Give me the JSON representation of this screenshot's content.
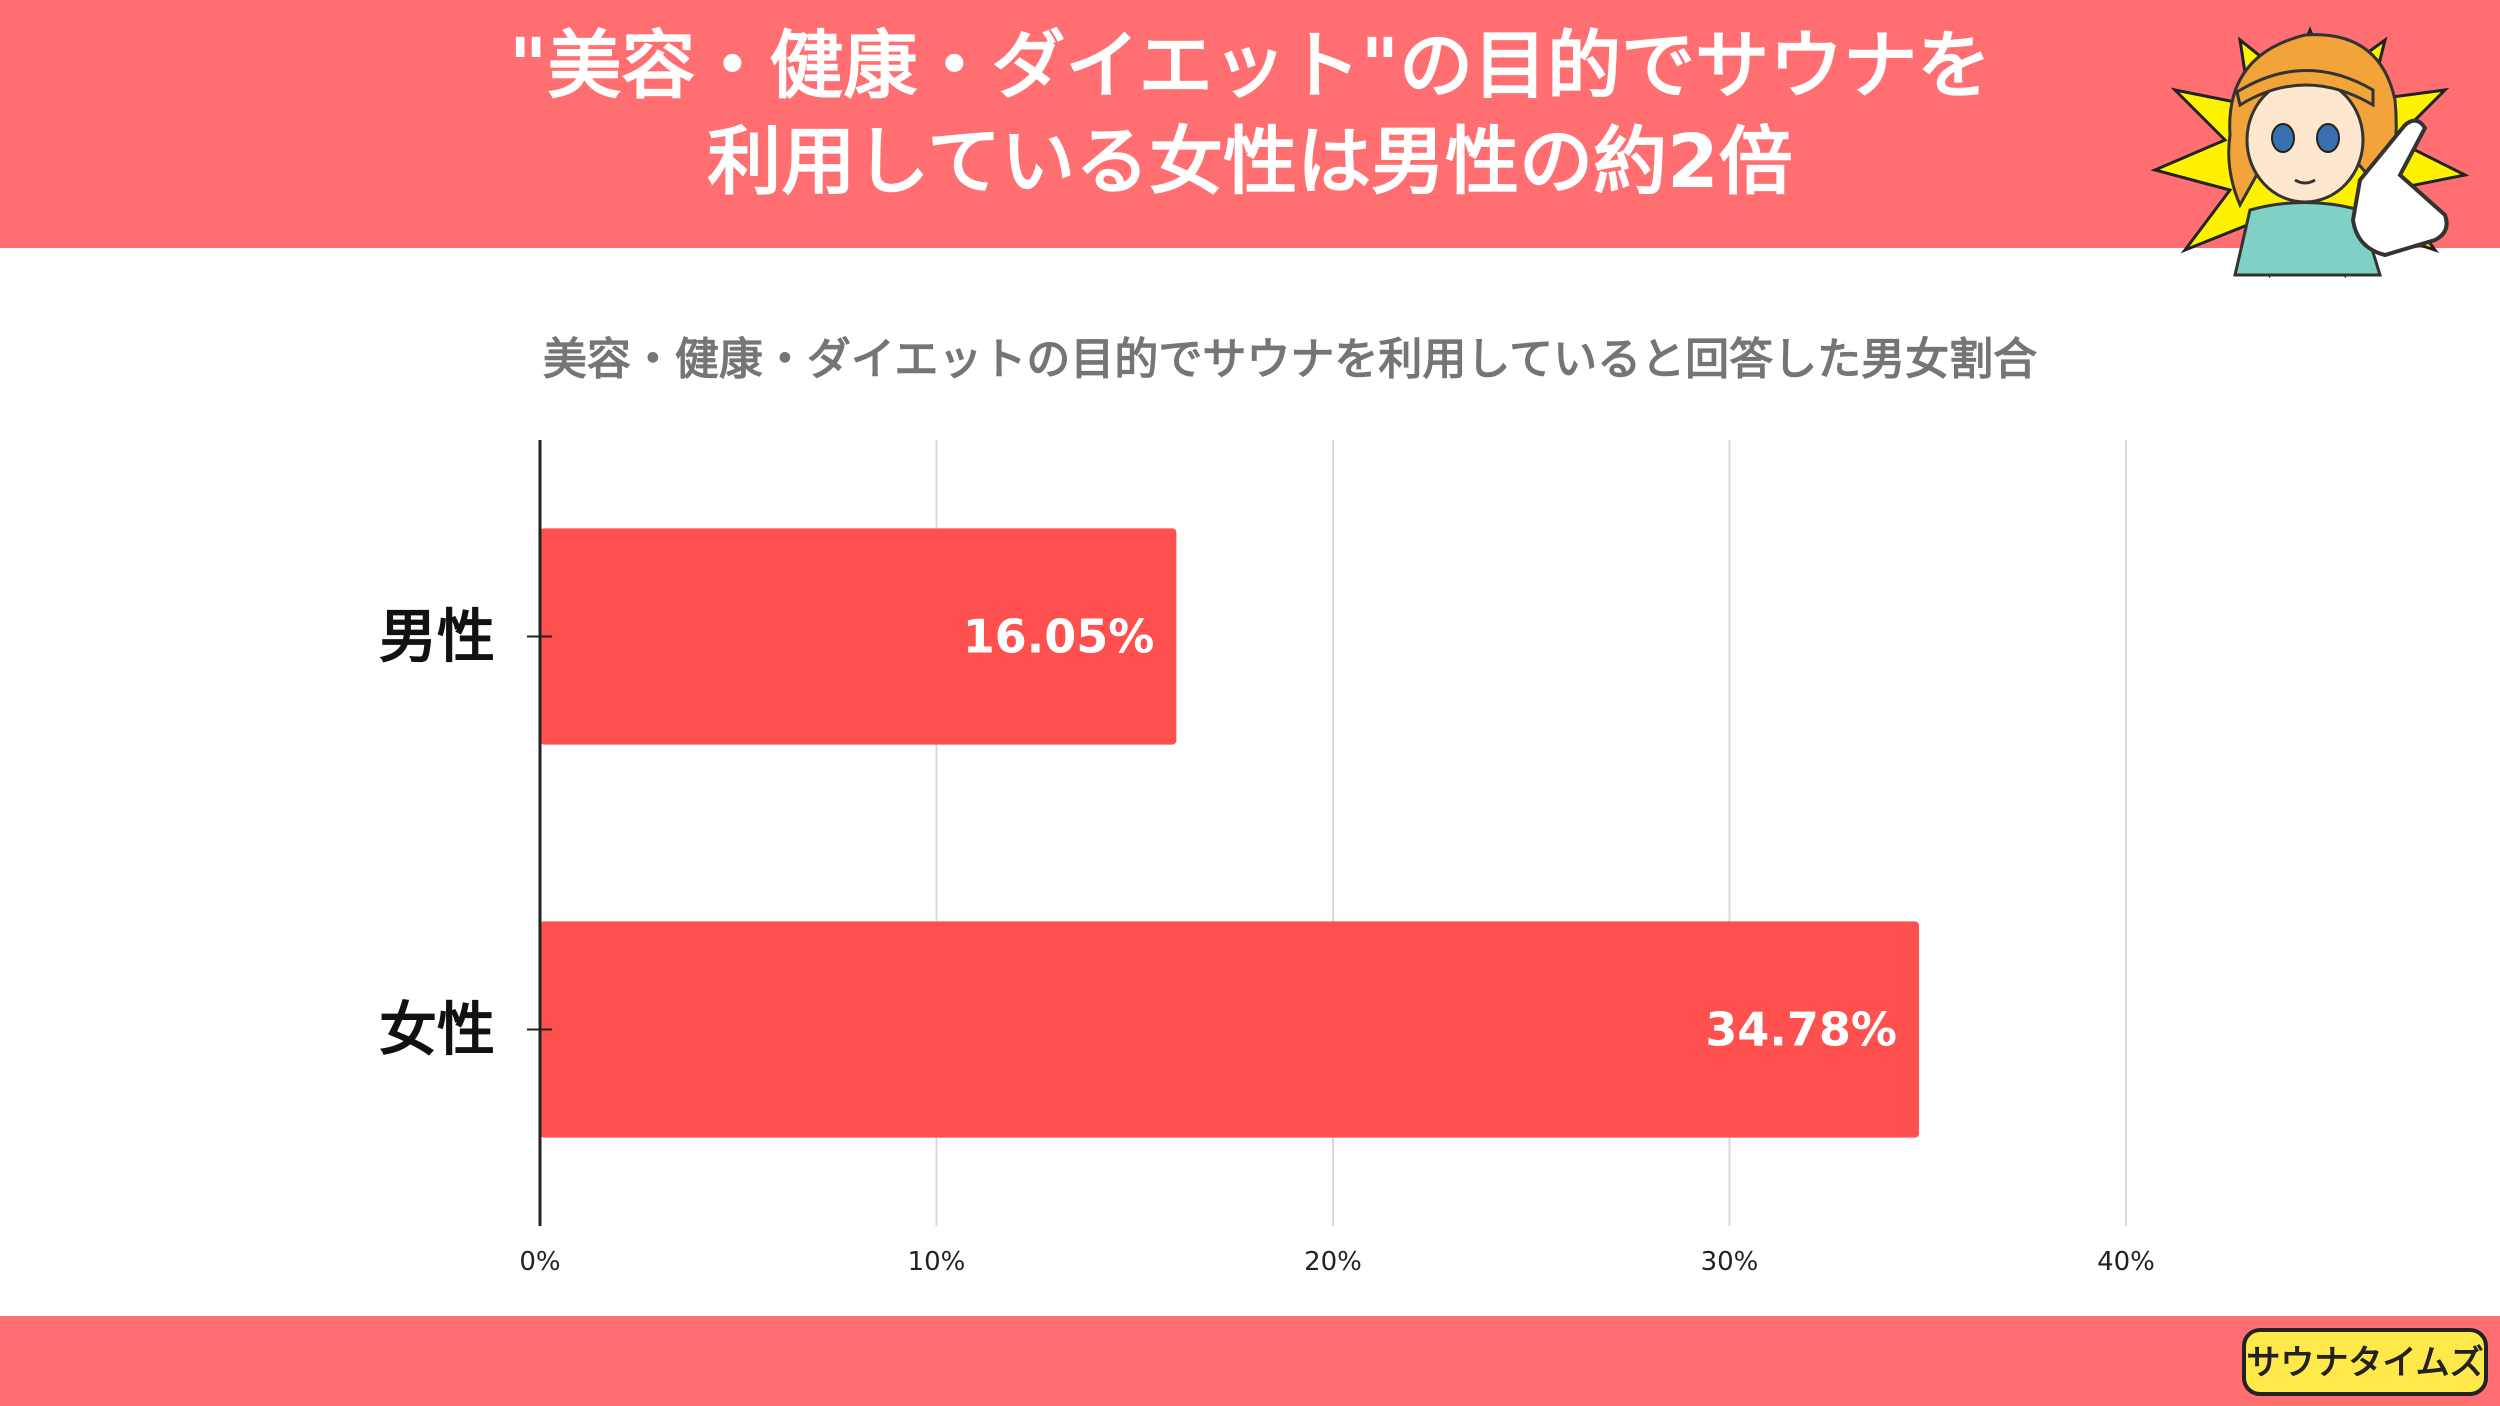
{
  "headline": {
    "line1": "\"美容・健康・ダイエット\"の目的でサウナを",
    "line2": "利用している女性は男性の約2倍"
  },
  "brand": {
    "logo_text": "サウナタイムズ"
  },
  "colors": {
    "band": "#ff6f71",
    "bar": "#ff5050",
    "gridline": "#d9d9d9"
  },
  "chart_data": {
    "type": "bar",
    "orientation": "horizontal",
    "title": "美容・健康・ダイエットの目的でサウナを利用していると回答した男女割合",
    "categories": [
      "男性",
      "女性"
    ],
    "values": [
      16.05,
      34.78
    ],
    "data_labels": [
      "16.05%",
      "34.78%"
    ],
    "xlim": [
      0,
      40
    ],
    "x_ticks": [
      0,
      10,
      20,
      30,
      40
    ],
    "x_tick_labels": [
      "0%",
      "10%",
      "20%",
      "30%",
      "40%"
    ],
    "grid": true,
    "legend": "none"
  }
}
